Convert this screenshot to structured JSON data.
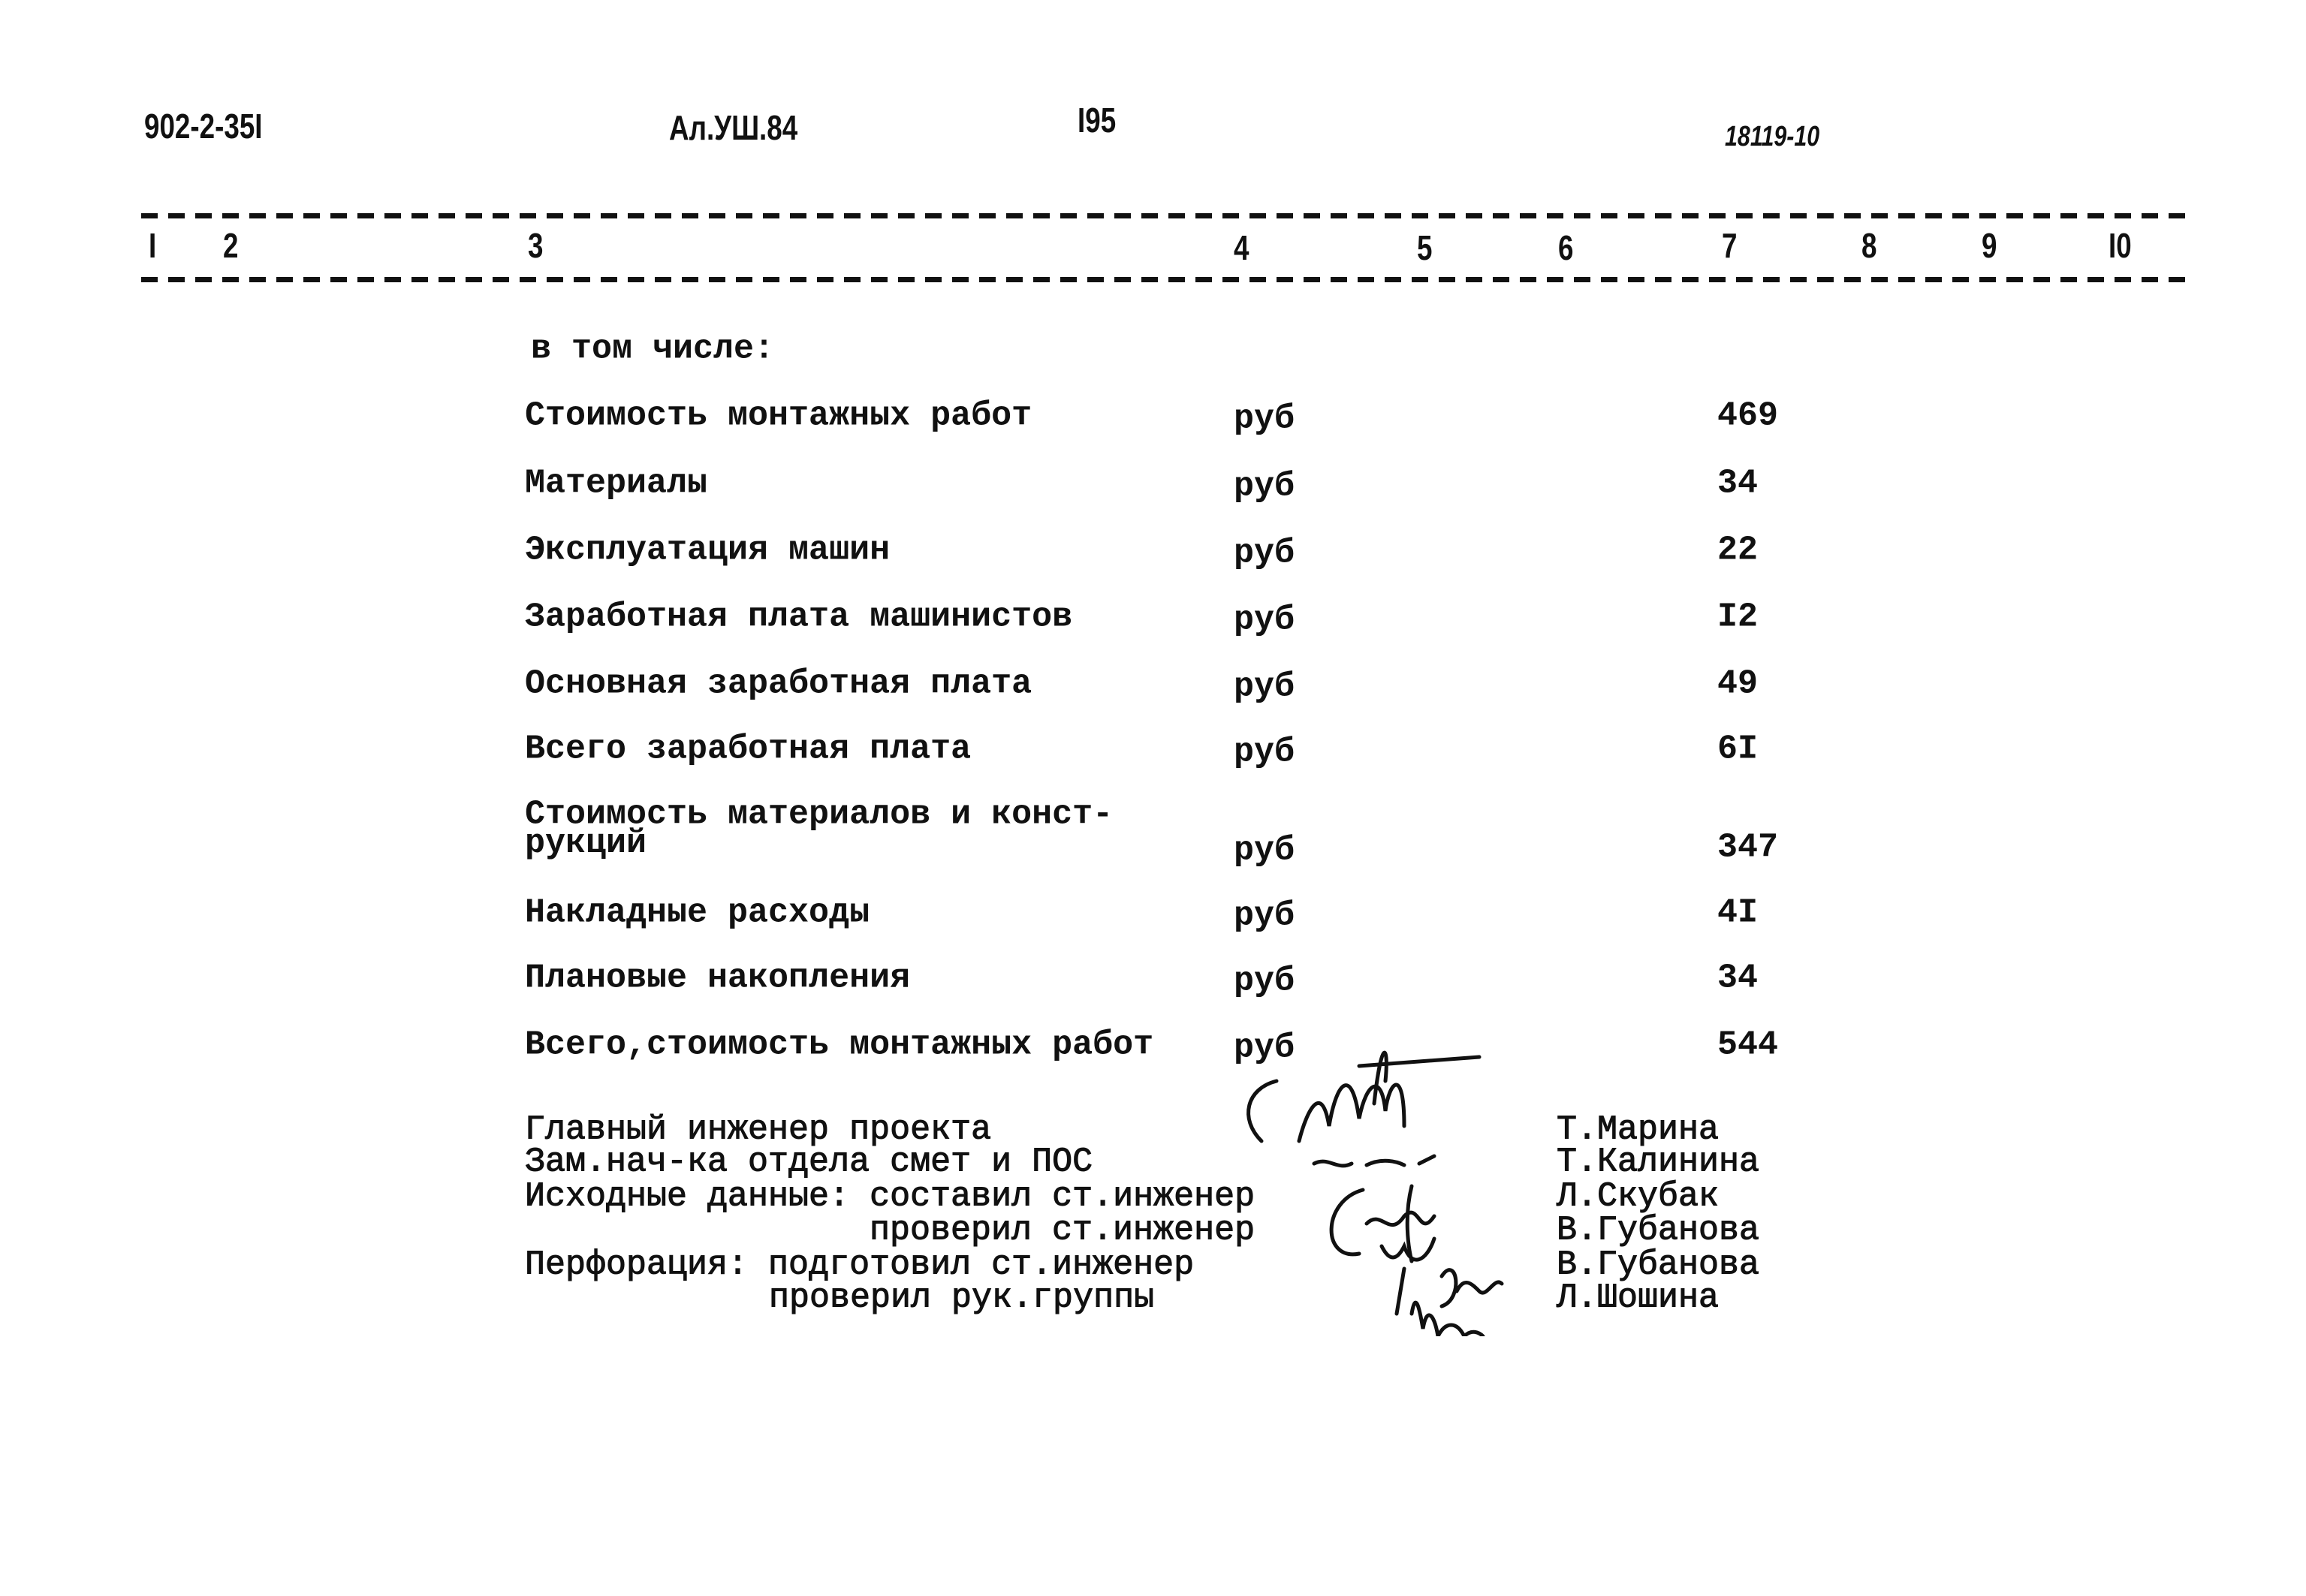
{
  "header": {
    "doc_code": "902-2-35I",
    "album": "Ал.УШ.84",
    "page": "I95",
    "ref": "18119-10"
  },
  "columns": [
    "I",
    "2",
    "3",
    "4",
    "5",
    "6",
    "7",
    "8",
    "9",
    "I0"
  ],
  "intro": "в том числе:",
  "rows": [
    {
      "name": "Стоимость монтажных работ",
      "unit": "руб",
      "value": "469"
    },
    {
      "name": "Материалы",
      "unit": "руб",
      "value": "34"
    },
    {
      "name": "Эксплуатация машин",
      "unit": "руб",
      "value": "22"
    },
    {
      "name": "Заработная плата машинистов",
      "unit": "руб",
      "value": "I2"
    },
    {
      "name": "Основная заработная плата",
      "unit": "руб",
      "value": "49"
    },
    {
      "name": "Всего заработная плата",
      "unit": "руб",
      "value": "6I"
    },
    {
      "name": "Стоимость материалов и конст-",
      "name2": "рукций",
      "unit": "руб",
      "value": "347"
    },
    {
      "name": "Накладные расходы",
      "unit": "руб",
      "value": "4I"
    },
    {
      "name": "Плановые накопления",
      "unit": "руб",
      "value": "34"
    },
    {
      "name": "Всего,стоимость монтажных работ",
      "unit": "руб",
      "value": "544"
    }
  ],
  "signatures": [
    {
      "role": "Главный инженер проекта",
      "name": "Т.Марина",
      "signature": "Марина"
    },
    {
      "role": "Зам.нач-ка отдела смет и ПОС",
      "name": "Т.Калинина",
      "signature": "Калинина"
    },
    {
      "role": "Исходные данные: составил ст.инженер",
      "name": "Л.Скубак",
      "signature": "Скубак"
    },
    {
      "role": "проверил ст.инженер",
      "name": "В.Губанова",
      "signature": "Вид"
    },
    {
      "role": "Перфорация: подготовил ст.инженер",
      "name": "В.Губанова",
      "signature": "Губан"
    },
    {
      "role": "проверил рук.группы",
      "name": "Л.Шошина",
      "signature": "Шош"
    }
  ]
}
